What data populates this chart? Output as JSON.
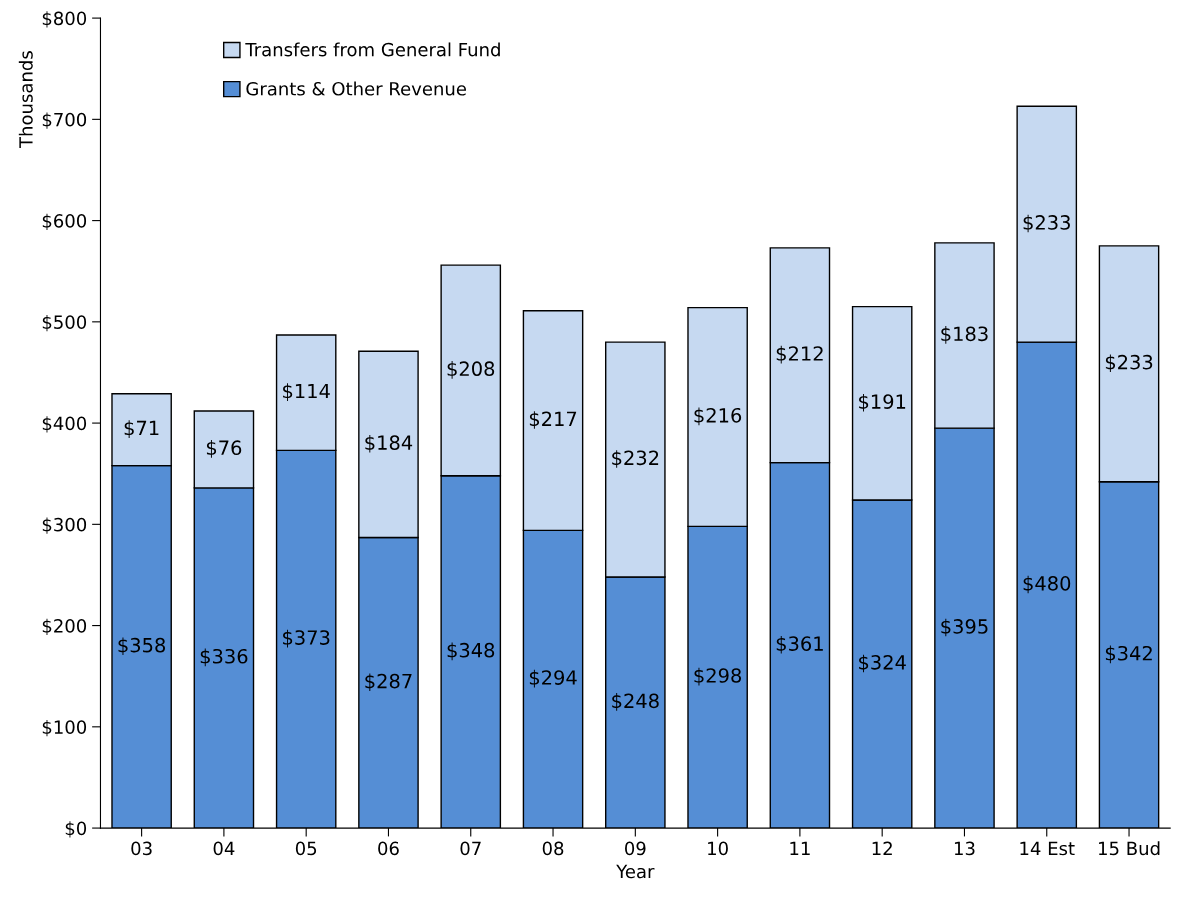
{
  "chart_data": {
    "type": "bar",
    "stacked": true,
    "xlabel": "Year",
    "ylabel": "Thousands",
    "categories": [
      "03",
      "04",
      "05",
      "06",
      "07",
      "08",
      "09",
      "10",
      "11",
      "12",
      "13",
      "14 Est",
      "15 Bud"
    ],
    "series": [
      {
        "name": "Grants & Other Revenue",
        "color": "#558ed5",
        "values": [
          358,
          336,
          373,
          287,
          348,
          294,
          248,
          298,
          361,
          324,
          395,
          480,
          342
        ],
        "value_labels": [
          "$358",
          "$336",
          "$373",
          "$287",
          "$348",
          "$294",
          "$248",
          "$298",
          "$361",
          "$324",
          "$395",
          "$480",
          "$342"
        ]
      },
      {
        "name": "Transfers from General Fund",
        "color": "#c6d9f1",
        "values": [
          71,
          76,
          114,
          184,
          208,
          217,
          232,
          216,
          212,
          191,
          183,
          233,
          233
        ],
        "value_labels": [
          "$71",
          "$76",
          "$114",
          "$184",
          "$208",
          "$217",
          "$232",
          "$216",
          "$212",
          "$191",
          "$183",
          "$233",
          "$233"
        ]
      }
    ],
    "ylim": [
      0,
      800
    ],
    "yticks": [
      {
        "value": 0,
        "label": "$0"
      },
      {
        "value": 100,
        "label": "$100"
      },
      {
        "value": 200,
        "label": "$200"
      },
      {
        "value": 300,
        "label": "$300"
      },
      {
        "value": 400,
        "label": "$400"
      },
      {
        "value": 500,
        "label": "$500"
      },
      {
        "value": 600,
        "label": "$600"
      },
      {
        "value": 700,
        "label": "$700"
      },
      {
        "value": 800,
        "label": "$800"
      }
    ],
    "grid": false,
    "legend": "top left"
  }
}
